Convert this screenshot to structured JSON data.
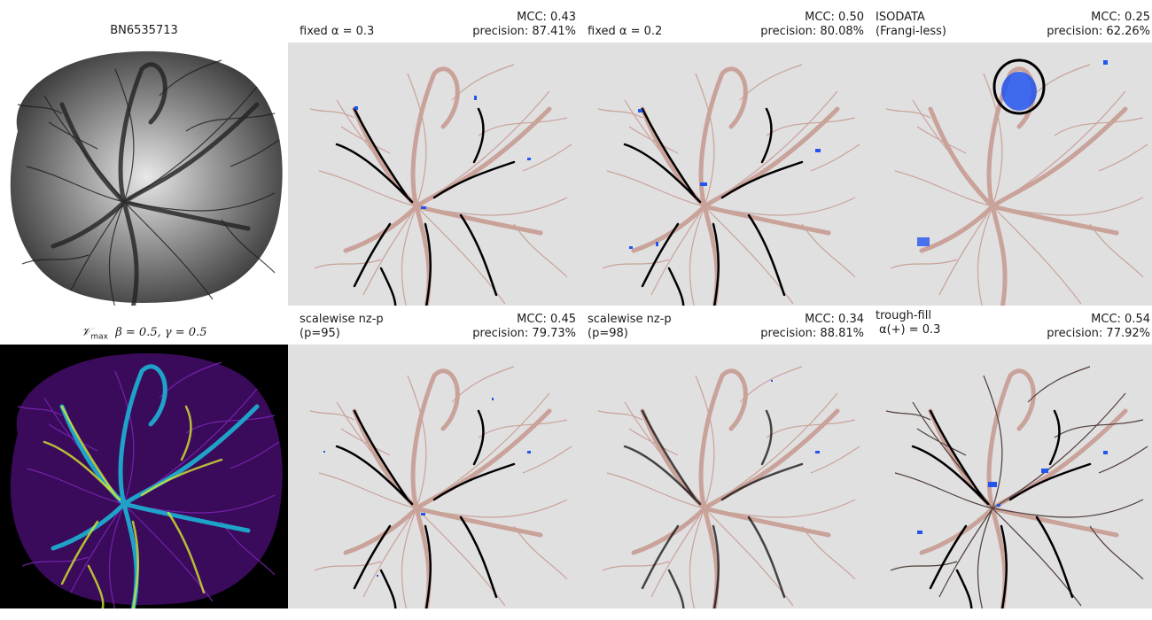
{
  "panels": {
    "source_image": {
      "label": "BN6535713"
    },
    "vesselness_map": {
      "label_symbol": "𝒱",
      "label_sub": "max",
      "label_params": "β = 0.5, γ = 0.5"
    },
    "p1": {
      "method_line1": "fixed α = 0.3",
      "method_line2": "",
      "mcc": "MCC: 0.43",
      "precision": "precision: 87.41%"
    },
    "p2": {
      "method_line1": "fixed α = 0.2",
      "method_line2": "",
      "mcc": "MCC: 0.50",
      "precision": "precision: 80.08%"
    },
    "p3": {
      "method_line1": "ISODATA",
      "method_line2": "(Frangi-less)",
      "mcc": "MCC: 0.25",
      "precision": "precision: 62.26%"
    },
    "p4": {
      "method_line1": "scalewise nz-p",
      "method_line2": "(p=95)",
      "mcc": "MCC: 0.45",
      "precision": "precision: 79.73%"
    },
    "p5": {
      "method_line1": "scalewise nz-p",
      "method_line2": "(p=98)",
      "mcc": "MCC: 0.34",
      "precision": "precision: 88.81%"
    },
    "p6": {
      "method_line1": "trough-fill",
      "method_line2": "α(+) = 0.3",
      "mcc": "MCC: 0.54",
      "precision": "precision: 77.92%"
    }
  },
  "colors": {
    "panel_bg": "#e0e0e0",
    "vessel_truth": "#c9a29a",
    "true_positive": "#000000",
    "false_positive": "#2255ee",
    "map_bg": "#000000"
  }
}
